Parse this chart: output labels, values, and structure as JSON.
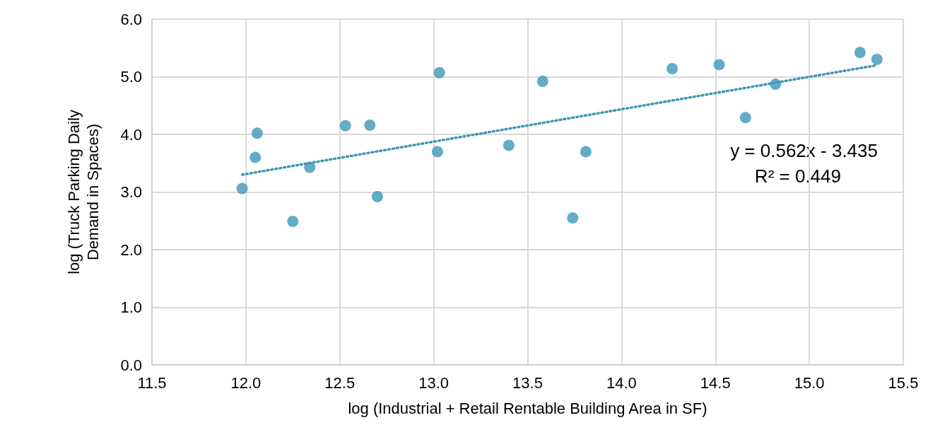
{
  "chart_data": {
    "type": "scatter",
    "xlabel": "log (Industrial + Retail Rentable Building Area in SF)",
    "ylabel": "log (Truck Parking Daily Demand in Spaces)",
    "xlim": [
      11.5,
      15.5
    ],
    "xticks": [
      {
        "value": 11.5,
        "label": "11.5"
      },
      {
        "value": 12,
        "label": "12.0"
      },
      {
        "value": 12.5,
        "label": "12.5"
      },
      {
        "value": 13,
        "label": "13.0"
      },
      {
        "value": 13.5,
        "label": "13.5"
      },
      {
        "value": 14,
        "label": "14.0"
      },
      {
        "value": 14.5,
        "label": "14.5"
      },
      {
        "value": 15,
        "label": "15.0"
      },
      {
        "value": 15.5,
        "label": "15.5"
      }
    ],
    "ylim": [
      0,
      6
    ],
    "yticks": [
      {
        "value": 0,
        "label": "0.0"
      },
      {
        "value": 1,
        "label": "1.0"
      },
      {
        "value": 2,
        "label": "2.0"
      },
      {
        "value": 3,
        "label": "3.0"
      },
      {
        "value": 4,
        "label": "4.0"
      },
      {
        "value": 5,
        "label": "5.0"
      },
      {
        "value": 6,
        "label": "6.0"
      }
    ],
    "grid": true,
    "marker": "circle",
    "series": [
      {
        "color": "#3b97b6",
        "x": [
          11.98,
          12.05,
          12.06,
          12.25,
          12.34,
          12.53,
          12.66,
          12.7,
          13.02,
          13.03,
          13.4,
          13.58,
          13.74,
          13.81,
          14.27,
          14.52,
          14.66,
          14.82,
          15.27,
          15.36
        ],
        "values": [
          3.06,
          3.6,
          4.02,
          2.49,
          3.43,
          4.15,
          4.16,
          2.92,
          3.7,
          5.07,
          3.81,
          4.92,
          2.55,
          3.7,
          5.14,
          5.21,
          4.29,
          4.87,
          5.42,
          5.3
        ]
      },
      {
        "type": "line",
        "color": "#3b97b6",
        "marker": "none",
        "line_style": "dotted",
        "x": [
          11.98,
          15.36
        ],
        "values": [
          3.3,
          5.2
        ]
      }
    ],
    "annotations": [
      "y = 0.562x - 3.435",
      "R² = 0.449"
    ]
  }
}
